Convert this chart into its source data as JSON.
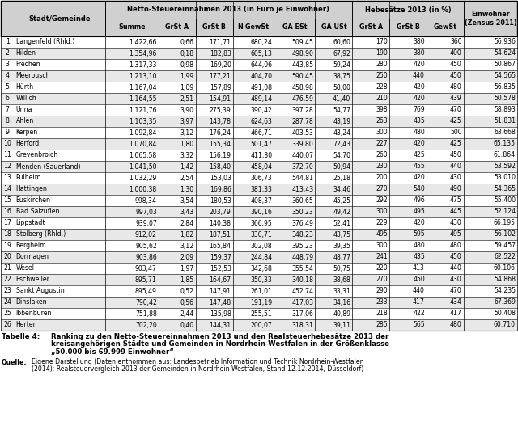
{
  "title_label": "Tabelle 4:",
  "title_text": "Ranking zu den Netto-Steuereinnahmen 2013 und den Realsteuerhebesätze 2013 der kreisangehörigen Städte und Gemeinden in Nordrhein-Westfalen in der Größenklasse „50.000 bis 69.999 Einwohner“",
  "source_label": "Quelle:",
  "source_text": "Eigene Darstellung (Daten entnommen aus: Landesbetrieb Information und Technik Nordrhein-Westfalen (2014): Realsteuervergleich 2013 der Gemeinden in Nordrhein-Westfalen, Stand 12.12.2014, Düsseldorf)",
  "rows": [
    [
      1,
      "Langenfeld (Rhld.)",
      "1.422,66",
      "0,66",
      "171,71",
      "680,24",
      "509,45",
      "60,60",
      "170",
      "380",
      "360",
      "56.936"
    ],
    [
      2,
      "Hilden",
      "1.354,96",
      "0,18",
      "182,83",
      "605,13",
      "498,90",
      "67,92",
      "190",
      "380",
      "400",
      "54.624"
    ],
    [
      3,
      "Frechen",
      "1.317,33",
      "0,98",
      "169,20",
      "644,06",
      "443,85",
      "59,24",
      "280",
      "420",
      "450",
      "50.867"
    ],
    [
      4,
      "Meerbusch",
      "1.213,10",
      "1,99",
      "177,21",
      "404,70",
      "590,45",
      "38,75",
      "250",
      "440",
      "450",
      "54.565"
    ],
    [
      5,
      "Hürth",
      "1.167,04",
      "1,09",
      "157,89",
      "491,08",
      "458,98",
      "58,00",
      "228",
      "420",
      "480",
      "56.835"
    ],
    [
      6,
      "Willich",
      "1.164,55",
      "2,51",
      "154,91",
      "489,14",
      "476,59",
      "41,40",
      "210",
      "420",
      "439",
      "50.578"
    ],
    [
      7,
      "Unna",
      "1.121,76",
      "3,90",
      "275,39",
      "390,42",
      "397,28",
      "54,77",
      "398",
      "769",
      "470",
      "58.893"
    ],
    [
      8,
      "Ahlen",
      "1.103,35",
      "3,97",
      "143,78",
      "624,63",
      "287,78",
      "43,19",
      "263",
      "435",
      "425",
      "51.831"
    ],
    [
      9,
      "Kerpen",
      "1.092,84",
      "3,12",
      "176,24",
      "466,71",
      "403,53",
      "43,24",
      "300",
      "480",
      "500",
      "63.668"
    ],
    [
      10,
      "Herford",
      "1.070,84",
      "1,80",
      "155,34",
      "501,47",
      "339,80",
      "72,43",
      "227",
      "420",
      "425",
      "65.135"
    ],
    [
      11,
      "Grevenbroich",
      "1.065,58",
      "3,32",
      "156,19",
      "411,30",
      "440,07",
      "54,70",
      "260",
      "425",
      "450",
      "61.864"
    ],
    [
      12,
      "Menden (Sauerland)",
      "1.041,50",
      "1,42",
      "158,40",
      "458,04",
      "372,70",
      "50,94",
      "230",
      "455",
      "440",
      "53.592"
    ],
    [
      13,
      "Pulheim",
      "1.032,29",
      "2,54",
      "153,03",
      "306,73",
      "544,81",
      "25,18",
      "200",
      "420",
      "430",
      "53.010"
    ],
    [
      14,
      "Hattingen",
      "1.000,38",
      "1,30",
      "169,86",
      "381,33",
      "413,43",
      "34,46",
      "270",
      "540",
      "490",
      "54.365"
    ],
    [
      15,
      "Euskirchen",
      "998,34",
      "3,54",
      "180,53",
      "408,37",
      "360,65",
      "45,25",
      "292",
      "496",
      "475",
      "55.400"
    ],
    [
      16,
      "Bad Salzuflen",
      "997,03",
      "3,43",
      "203,79",
      "390,16",
      "350,23",
      "49,42",
      "300",
      "495",
      "445",
      "52.124"
    ],
    [
      17,
      "Lippstadt",
      "939,07",
      "2,84",
      "140,38",
      "366,95",
      "376,49",
      "52,41",
      "229",
      "420",
      "430",
      "66.195"
    ],
    [
      18,
      "Stolberg (Rhld.)",
      "912,02",
      "1,82",
      "187,51",
      "330,71",
      "348,23",
      "43,75",
      "495",
      "595",
      "495",
      "56.102"
    ],
    [
      19,
      "Bergheim",
      "905,62",
      "3,12",
      "165,84",
      "302,08",
      "395,23",
      "39,35",
      "300",
      "480",
      "480",
      "59.457"
    ],
    [
      20,
      "Dormagen",
      "903,86",
      "2,09",
      "159,37",
      "244,84",
      "448,79",
      "48,77",
      "241",
      "435",
      "450",
      "62.522"
    ],
    [
      21,
      "Wesel",
      "903,47",
      "1,97",
      "152,53",
      "342,68",
      "355,54",
      "50,75",
      "220",
      "413",
      "440",
      "60.106"
    ],
    [
      22,
      "Eschweiler",
      "895,71",
      "1,85",
      "164,67",
      "350,33",
      "340,18",
      "38,68",
      "270",
      "450",
      "430",
      "54.868"
    ],
    [
      23,
      "Sankt Augustin",
      "895,49",
      "0,52",
      "147,91",
      "261,01",
      "452,74",
      "33,31",
      "290",
      "440",
      "470",
      "54.235"
    ],
    [
      24,
      "Dinslaken",
      "790,42",
      "0,56",
      "147,48",
      "191,19",
      "417,03",
      "34,16",
      "233",
      "417",
      "434",
      "67.369"
    ],
    [
      25,
      "Ibbenbüren",
      "751,88",
      "2,44",
      "135,98",
      "255,51",
      "317,06",
      "40,89",
      "218",
      "422",
      "417",
      "50.408"
    ],
    [
      26,
      "Herten",
      "702,20",
      "0,40",
      "144,31",
      "200,07",
      "318,31",
      "39,11",
      "285",
      "565",
      "480",
      "60.710"
    ]
  ],
  "header_bg": "#d0d0d0",
  "odd_bg": "#ffffff",
  "even_bg": "#e8e8e8",
  "border_color": "#000000",
  "font_size_data": 5.6,
  "font_size_header": 6.0,
  "font_size_footer_title": 6.2,
  "font_size_footer_source": 5.6
}
